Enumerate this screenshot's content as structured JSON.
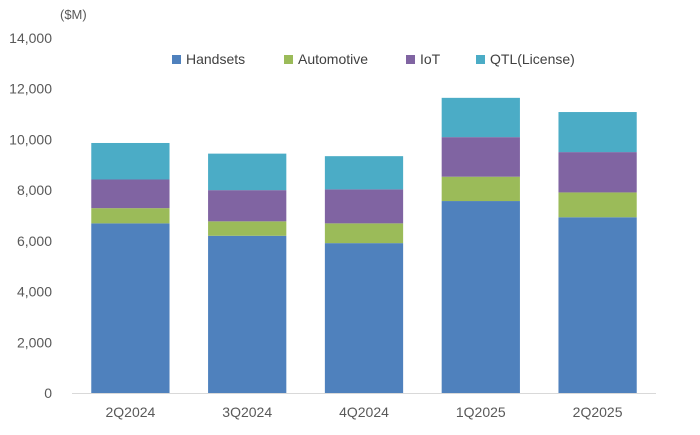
{
  "chart_data": {
    "type": "bar",
    "stacked": true,
    "unit_label": "($M)",
    "categories": [
      "2Q2024",
      "3Q2024",
      "4Q2024",
      "1Q2025",
      "2Q2025"
    ],
    "series": [
      {
        "name": "Handsets",
        "color": "#4F81BD",
        "values": [
          6690,
          6200,
          5910,
          7570,
          6930
        ]
      },
      {
        "name": "Automotive",
        "color": "#9BBB59",
        "values": [
          600,
          570,
          780,
          960,
          980
        ]
      },
      {
        "name": "IoT",
        "color": "#8064A2",
        "values": [
          1130,
          1230,
          1340,
          1560,
          1590
        ]
      },
      {
        "name": "QTL(License)",
        "color": "#4BACC6",
        "values": [
          1440,
          1440,
          1310,
          1550,
          1580
        ]
      }
    ],
    "ylim": [
      0,
      14000
    ],
    "yticks": [
      "0",
      "2,000",
      "4,000",
      "6,000",
      "8,000",
      "10,000",
      "12,000",
      "14,000"
    ],
    "ytick_values": [
      0,
      2000,
      4000,
      6000,
      8000,
      10000,
      12000,
      14000
    ],
    "grid": false,
    "legend_position": "top"
  }
}
